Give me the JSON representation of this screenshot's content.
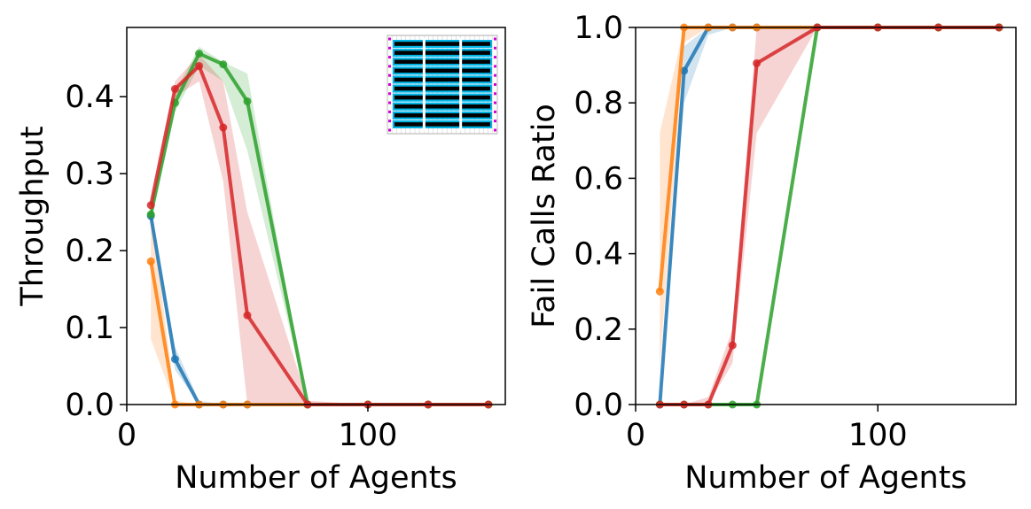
{
  "colors": {
    "blue": "#1f77b4",
    "orange": "#ff7f0e",
    "green": "#2ca02c",
    "red": "#d62728"
  },
  "chart_data": [
    {
      "type": "line",
      "title": "",
      "xlabel": "Number of Agents",
      "ylabel": "Throughput",
      "xlim": [
        0,
        157
      ],
      "ylim": [
        0,
        0.49
      ],
      "xticks": [
        0,
        100
      ],
      "xtick_labels": [
        "0",
        "100"
      ],
      "yticks": [
        0,
        0.1,
        0.2,
        0.3,
        0.4
      ],
      "ytick_labels": [
        "0.0",
        "0.1",
        "0.2",
        "0.3",
        "0.4"
      ],
      "x": [
        10,
        20,
        30,
        40,
        50,
        75,
        100,
        125,
        150
      ],
      "inset": "warehouse-map",
      "series": [
        {
          "name": "blue",
          "color": "blue",
          "values": [
            0.245,
            0.059,
            0,
            0,
            0,
            0,
            0,
            0,
            0
          ],
          "lower": [
            0.235,
            0.045,
            0,
            0,
            0,
            0,
            0,
            0,
            0
          ],
          "upper": [
            0.255,
            0.075,
            0.005,
            0,
            0,
            0,
            0,
            0,
            0
          ]
        },
        {
          "name": "orange",
          "color": "orange",
          "values": [
            0.186,
            0,
            0,
            0,
            0,
            0,
            0,
            0,
            0
          ],
          "lower": [
            0.085,
            0,
            0,
            0,
            0,
            0,
            0,
            0,
            0
          ],
          "upper": [
            0.26,
            0.005,
            0,
            0,
            0,
            0,
            0,
            0,
            0
          ]
        },
        {
          "name": "green",
          "color": "green",
          "values": [
            0.247,
            0.392,
            0.456,
            0.442,
            0.394,
            0,
            0,
            0,
            0
          ],
          "lower": [
            0.24,
            0.38,
            0.44,
            0.42,
            0.33,
            0,
            0,
            0,
            0
          ],
          "upper": [
            0.255,
            0.405,
            0.465,
            0.445,
            0.43,
            0,
            0,
            0,
            0
          ]
        },
        {
          "name": "red",
          "color": "red",
          "values": [
            0.259,
            0.41,
            0.44,
            0.36,
            0.116,
            0,
            0,
            0,
            0
          ],
          "lower": [
            0.25,
            0.4,
            0.42,
            0.29,
            0,
            0,
            0,
            0,
            0
          ],
          "upper": [
            0.265,
            0.42,
            0.455,
            0.42,
            0.25,
            0.005,
            0,
            0,
            0
          ]
        }
      ]
    },
    {
      "type": "line",
      "title": "",
      "xlabel": "Number of Agents",
      "ylabel": "Fail Calls Ratio",
      "xlim": [
        0,
        157
      ],
      "ylim": [
        0,
        1.0
      ],
      "xticks": [
        0,
        100
      ],
      "xtick_labels": [
        "0",
        "100"
      ],
      "yticks": [
        0,
        0.2,
        0.4,
        0.6,
        0.8,
        1.0
      ],
      "ytick_labels": [
        "0.0",
        "0.2",
        "0.4",
        "0.6",
        "0.8",
        "1.0"
      ],
      "x": [
        10,
        20,
        30,
        40,
        50,
        75,
        100,
        125,
        150
      ],
      "series": [
        {
          "name": "blue",
          "color": "blue",
          "values": [
            0,
            0.885,
            1.0,
            1.0,
            1.0,
            1.0,
            1.0,
            1.0,
            1.0
          ],
          "lower": [
            0,
            0.8,
            0.98,
            1.0,
            1.0,
            1.0,
            1.0,
            1.0,
            1.0
          ],
          "upper": [
            0.01,
            0.95,
            1.0,
            1.0,
            1.0,
            1.0,
            1.0,
            1.0,
            1.0
          ]
        },
        {
          "name": "orange",
          "color": "orange",
          "values": [
            0.3,
            1.0,
            1.0,
            1.0,
            1.0,
            1.0,
            1.0,
            1.0,
            1.0
          ],
          "lower": [
            0.1,
            0.96,
            1.0,
            1.0,
            1.0,
            1.0,
            1.0,
            1.0,
            1.0
          ],
          "upper": [
            0.72,
            1.0,
            1.0,
            1.0,
            1.0,
            1.0,
            1.0,
            1.0,
            1.0
          ]
        },
        {
          "name": "green",
          "color": "green",
          "values": [
            0,
            0,
            0,
            0,
            0,
            1.0,
            1.0,
            1.0,
            1.0
          ],
          "lower": [
            0,
            0,
            0,
            0,
            0,
            1.0,
            1.0,
            1.0,
            1.0
          ],
          "upper": [
            0,
            0,
            0,
            0,
            0,
            1.0,
            1.0,
            1.0,
            1.0
          ]
        },
        {
          "name": "red",
          "color": "red",
          "values": [
            0,
            0,
            0,
            0.157,
            0.905,
            1.0,
            1.0,
            1.0,
            1.0
          ],
          "lower": [
            0,
            0,
            0,
            0.11,
            0.72,
            1.0,
            1.0,
            1.0,
            1.0
          ],
          "upper": [
            0,
            0,
            0.02,
            0.2,
            1.0,
            1.0,
            1.0,
            1.0,
            1.0
          ]
        }
      ]
    }
  ]
}
